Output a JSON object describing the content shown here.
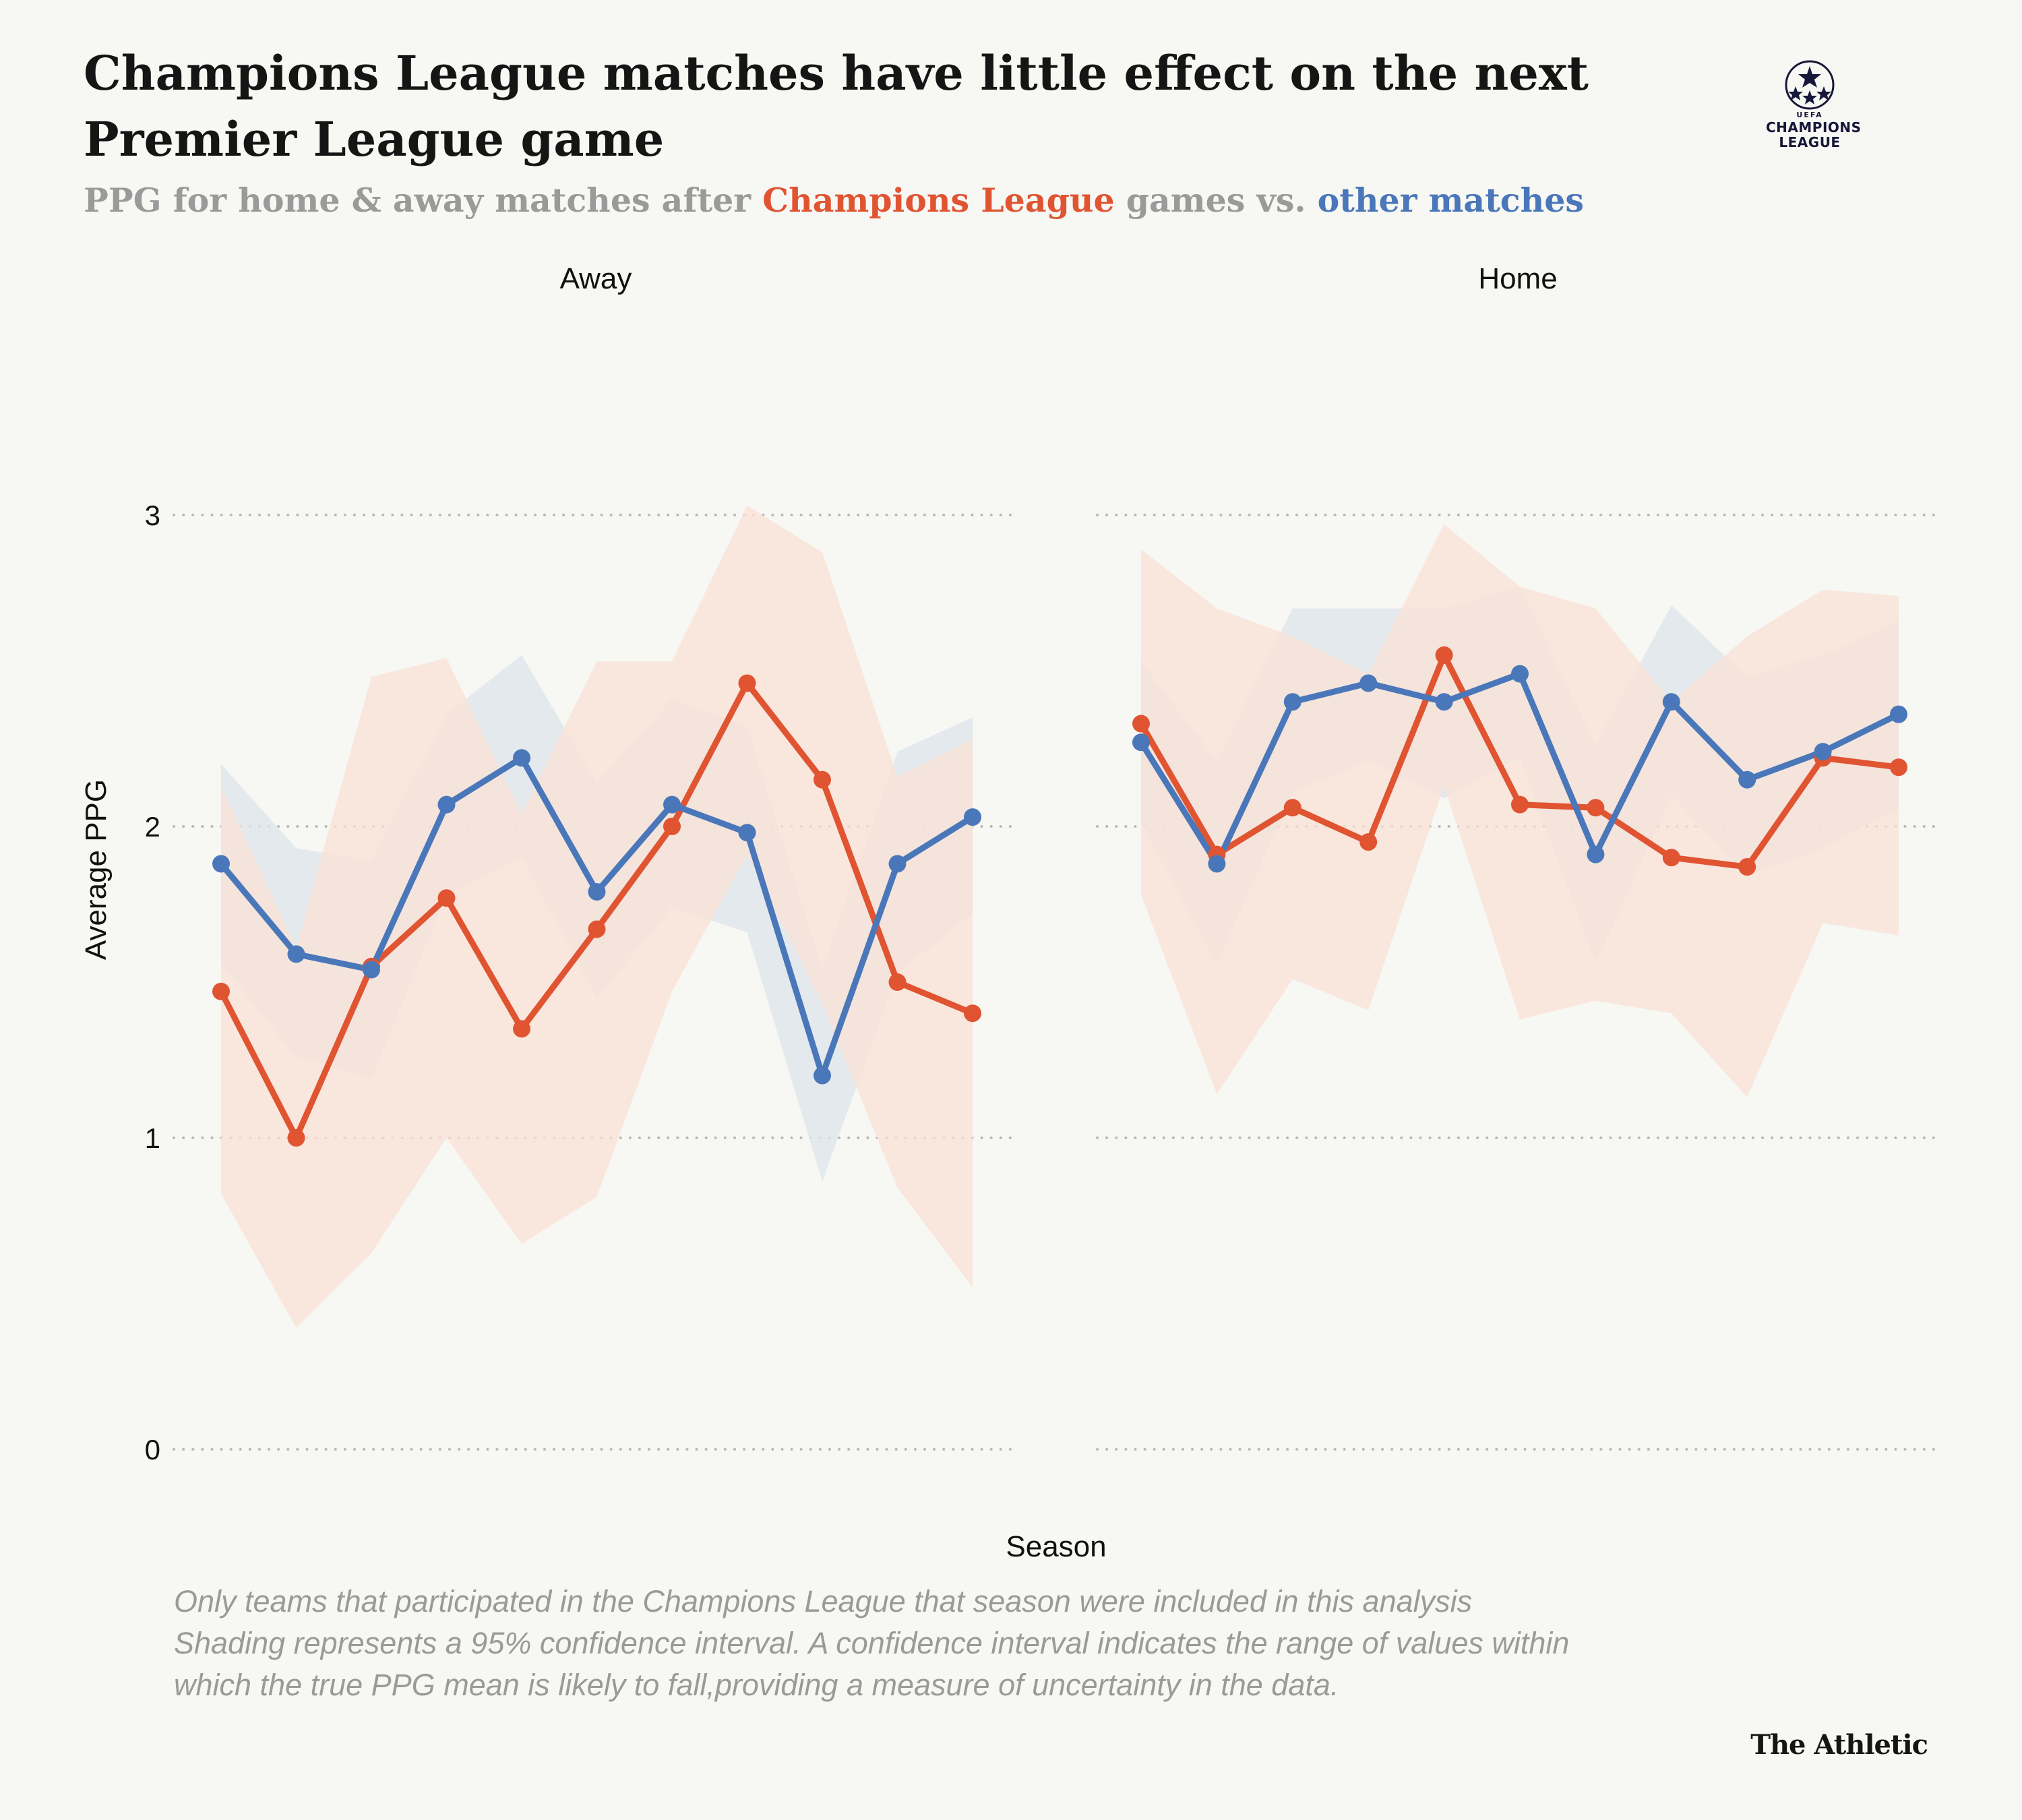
{
  "title": "Champions League matches have little effect on the next Premier League game",
  "subtitle": {
    "prefix": "PPG for home & away matches after ",
    "highlight_cl": "Champions League",
    "middle": " games vs. ",
    "highlight_other": "other matches"
  },
  "logo": {
    "uefa": "UEFA",
    "line1": "CHAMPIONS",
    "line2": "LEAGUE"
  },
  "colors": {
    "cl": "#e05432",
    "other": "#4a77b9",
    "cl_band": "#f9e1d6",
    "other_band": "#dfe5eb",
    "grid": "#b9b9b6"
  },
  "chart_data": {
    "type": "line",
    "xlabel": "Season",
    "ylabel": "Average PPG",
    "ylim": [
      0,
      3
    ],
    "yticks": [
      0,
      1,
      2,
      3
    ],
    "grid": "horizontal dotted",
    "panels": [
      {
        "label": "Away",
        "series": [
          {
            "key": "cl",
            "values": [
              1.47,
              1.0,
              1.55,
              1.77,
              1.35,
              1.67,
              2.0,
              2.46,
              2.15,
              1.5,
              1.4
            ],
            "lower": [
              0.82,
              0.39,
              0.63,
              1.0,
              0.66,
              0.81,
              1.47,
              1.91,
              1.43,
              0.84,
              0.52
            ],
            "upper": [
              2.13,
              1.61,
              2.48,
              2.54,
              2.04,
              2.53,
              2.53,
              3.03,
              2.88,
              2.16,
              2.28
            ]
          },
          {
            "key": "other",
            "values": [
              1.88,
              1.59,
              1.54,
              2.07,
              2.22,
              1.79,
              2.07,
              1.98,
              1.2,
              1.88,
              2.03
            ],
            "lower": [
              1.56,
              1.26,
              1.19,
              1.78,
              1.9,
              1.45,
              1.74,
              1.66,
              0.86,
              1.53,
              1.72
            ],
            "upper": [
              2.2,
              1.93,
              1.89,
              2.36,
              2.55,
              2.14,
              2.41,
              2.32,
              1.54,
              2.24,
              2.35
            ]
          }
        ]
      },
      {
        "label": "Home",
        "series": [
          {
            "key": "cl",
            "values": [
              2.33,
              1.91,
              2.06,
              1.95,
              2.55,
              2.07,
              2.06,
              1.9,
              1.87,
              2.22,
              2.19
            ],
            "lower": [
              1.78,
              1.14,
              1.51,
              1.41,
              2.13,
              1.38,
              1.44,
              1.4,
              1.13,
              1.69,
              1.65
            ],
            "upper": [
              2.89,
              2.7,
              2.61,
              2.49,
              2.97,
              2.77,
              2.7,
              2.4,
              2.61,
              2.76,
              2.74
            ]
          },
          {
            "key": "other",
            "values": [
              2.27,
              1.88,
              2.4,
              2.46,
              2.4,
              2.49,
              1.91,
              2.4,
              2.15,
              2.24,
              2.36
            ],
            "lower": [
              2.01,
              1.56,
              2.11,
              2.21,
              2.09,
              2.22,
              1.56,
              2.1,
              1.84,
              1.93,
              2.06
            ],
            "upper": [
              2.53,
              2.21,
              2.7,
              2.7,
              2.7,
              2.77,
              2.26,
              2.71,
              2.48,
              2.55,
              2.66
            ]
          }
        ]
      }
    ]
  },
  "footnote": [
    "Only teams that participated in the Champions League that season were included in this analysis",
    "Shading represents a 95% confidence interval. A confidence interval indicates the range of values within",
    "which the true PPG mean is likely to fall,providing a measure of uncertainty in the data."
  ],
  "brand": "The Athletic"
}
